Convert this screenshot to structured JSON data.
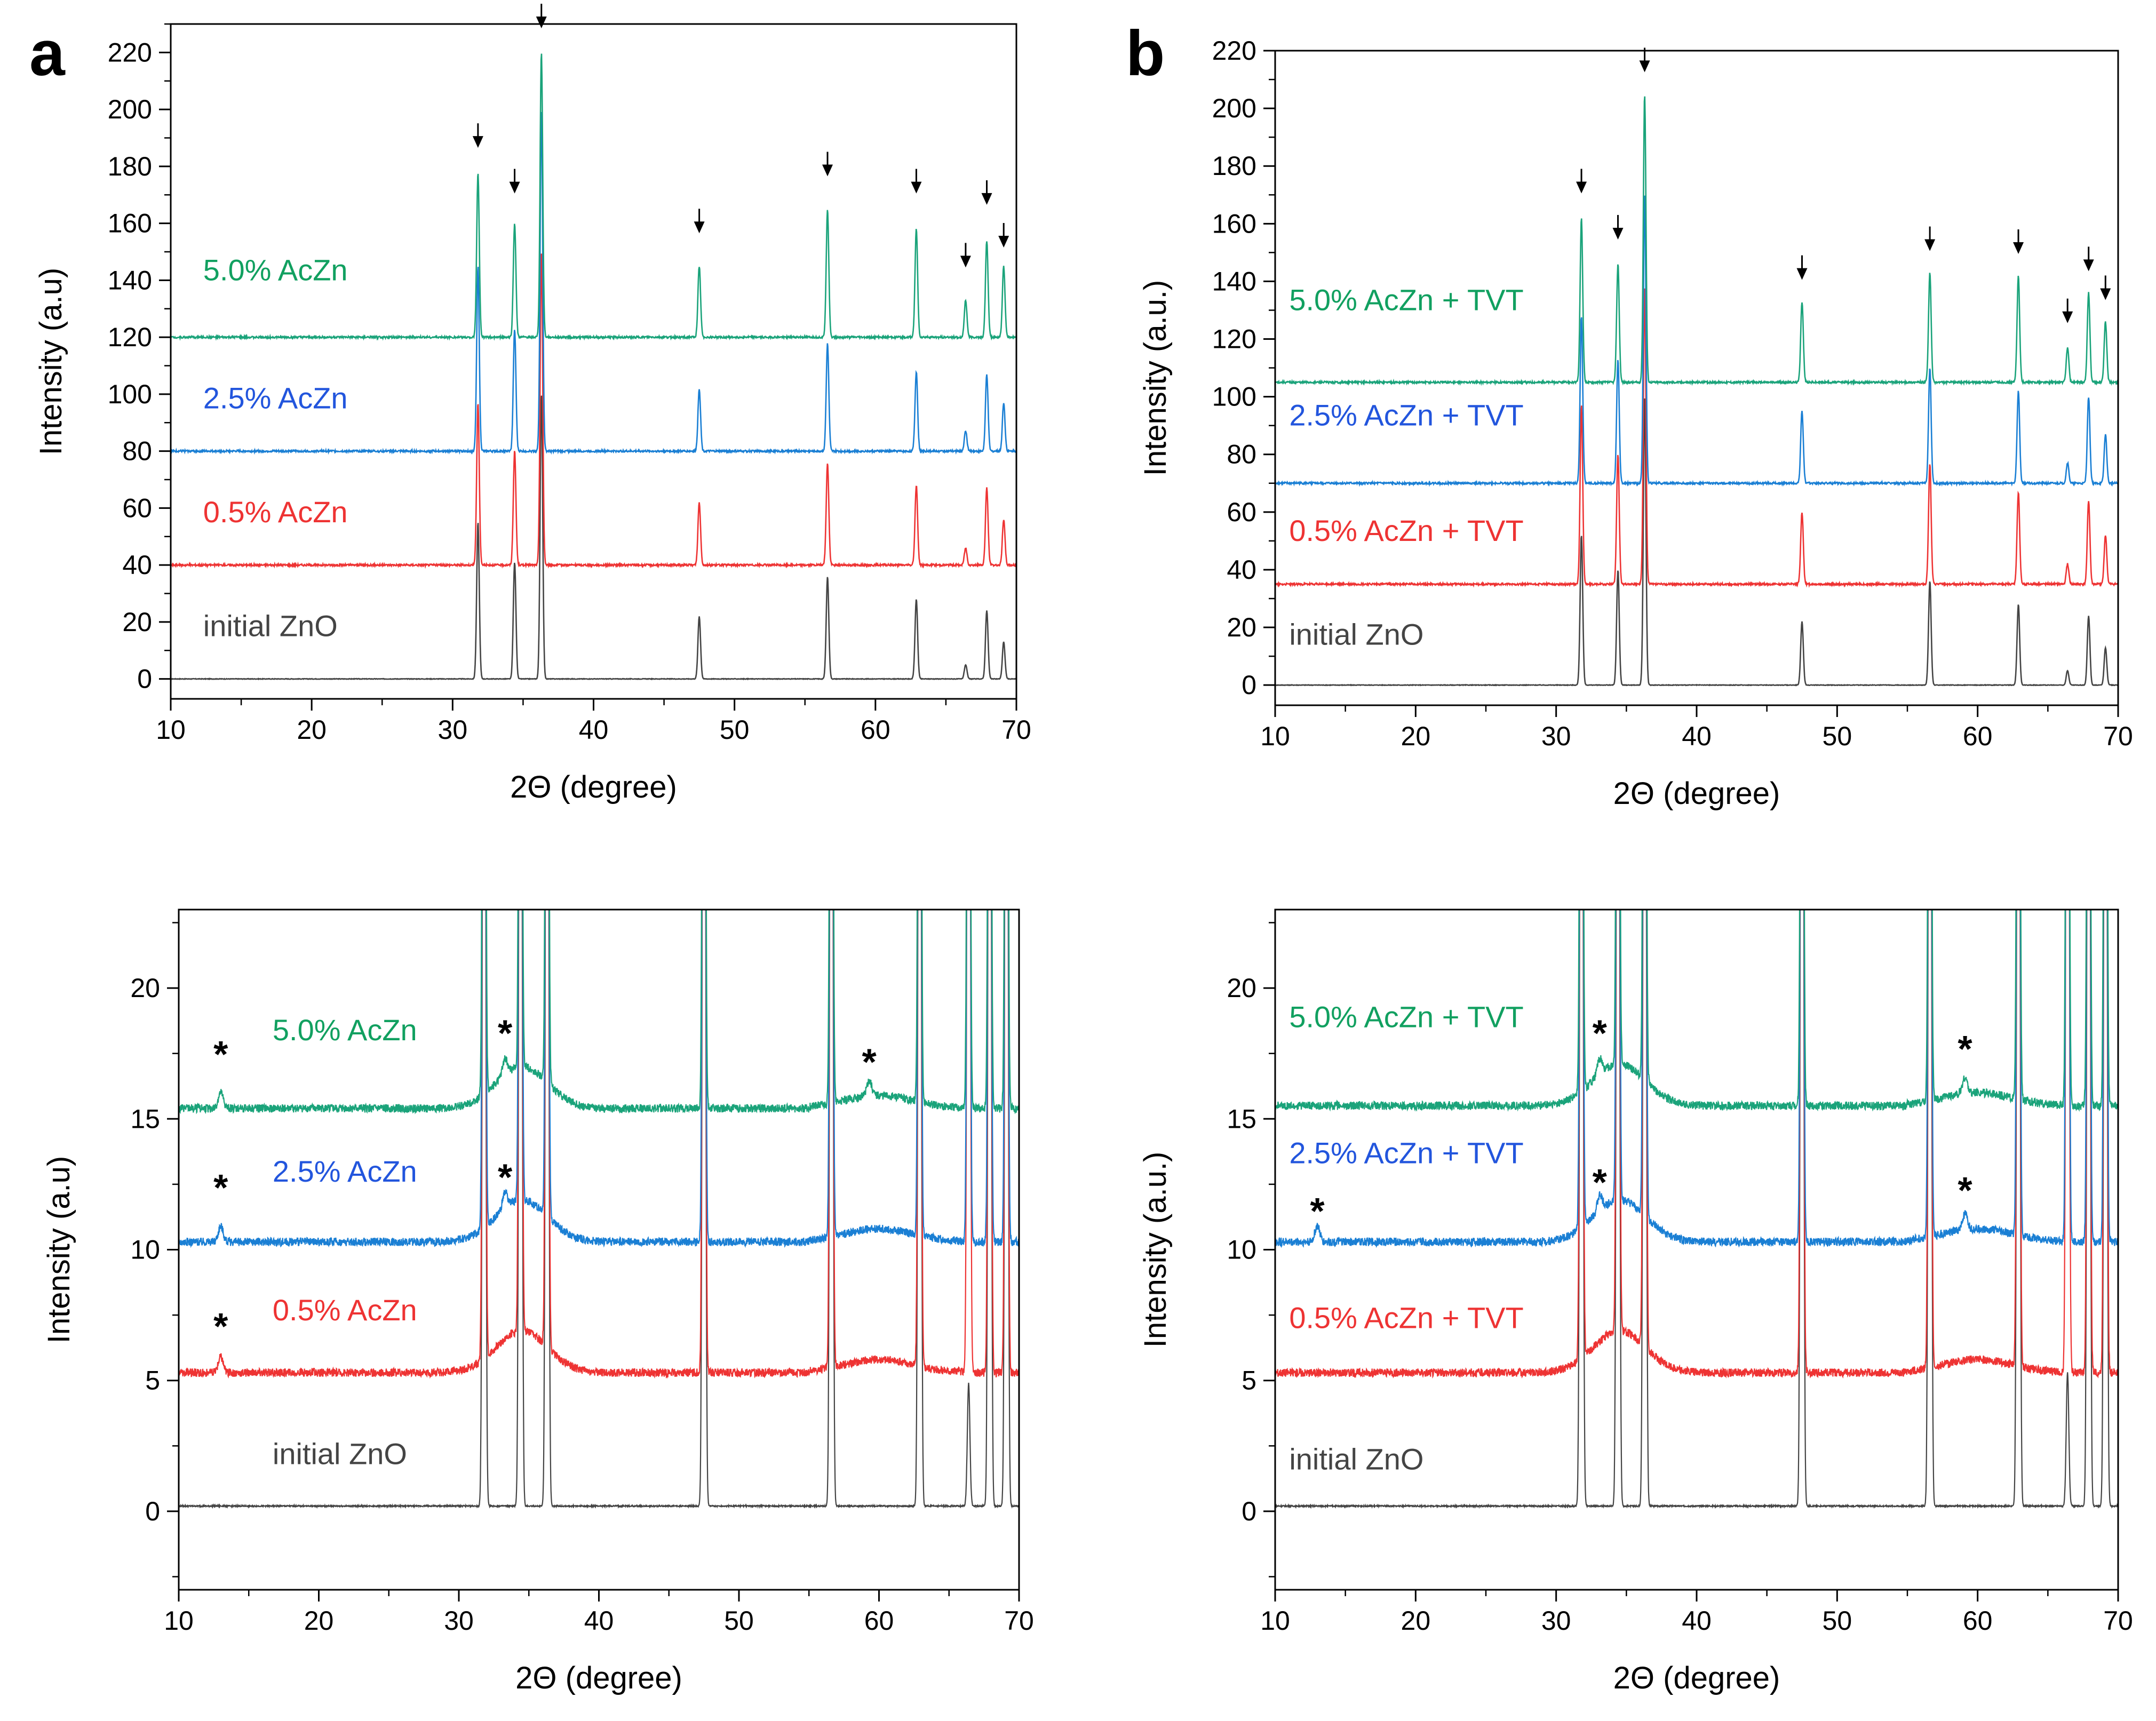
{
  "figure": {
    "panels": [
      {
        "letter": "a"
      },
      {
        "letter": "b"
      }
    ]
  },
  "colors": {
    "initial": "#444444",
    "p05": "#ee3333",
    "p25": "#2255dd",
    "p50": "#11a060",
    "p25_line": "#1a7fd4",
    "p50_line": "#1aa37a",
    "axis": "#000000"
  },
  "chart_data": [
    {
      "id": "a-top",
      "type": "line",
      "title": "",
      "xlabel": "2Θ (degree)",
      "ylabel": "Intensity (a.u)",
      "xlim": [
        10,
        70
      ],
      "ylim": [
        -7,
        230
      ],
      "xticks": [
        10,
        20,
        30,
        40,
        50,
        60,
        70
      ],
      "yticks": [
        0,
        20,
        40,
        60,
        80,
        100,
        120,
        140,
        160,
        180,
        200,
        220
      ],
      "peaks_deg": [
        31.8,
        34.4,
        36.3,
        47.5,
        56.6,
        62.9,
        66.4,
        67.9,
        69.1
      ],
      "series": [
        {
          "name": "initial ZnO",
          "offset": 0,
          "peak_tops": [
            55,
            41,
            100,
            22,
            36,
            28,
            5,
            24,
            13
          ],
          "label_pos": 1
        },
        {
          "name": "0.5% AcZn",
          "offset": 40,
          "peak_tops": [
            97,
            80,
            150,
            62,
            76,
            68,
            46,
            67,
            56
          ],
          "label_pos": 2
        },
        {
          "name": "2.5% AcZn",
          "offset": 80,
          "peak_tops": [
            145,
            123,
            200,
            102,
            118,
            108,
            87,
            107,
            97
          ],
          "label_pos": 3
        },
        {
          "name": "5.0% AcZn",
          "offset": 120,
          "peak_tops": [
            178,
            160,
            220,
            145,
            165,
            158,
            133,
            154,
            145
          ],
          "label_pos": 4
        }
      ],
      "label_y": [
        15,
        55,
        95,
        140
      ],
      "peak_arrow_y": [
        188,
        172,
        230,
        158,
        178,
        172,
        146,
        168,
        153
      ],
      "zoom_markers": []
    },
    {
      "id": "b-top",
      "type": "line",
      "title": "",
      "xlabel": "2Θ (degree)",
      "ylabel": "Intensity (a.u.)",
      "xlim": [
        10,
        70
      ],
      "ylim": [
        -7,
        220
      ],
      "xticks": [
        10,
        20,
        30,
        40,
        50,
        60,
        70
      ],
      "yticks": [
        0,
        20,
        40,
        60,
        80,
        100,
        120,
        140,
        160,
        180,
        200,
        220
      ],
      "peaks_deg": [
        31.8,
        34.4,
        36.3,
        47.5,
        56.6,
        62.9,
        66.4,
        67.9,
        69.1
      ],
      "series": [
        {
          "name": "initial ZnO",
          "offset": 0,
          "peak_tops": [
            52,
            40,
            100,
            22,
            36,
            28,
            5,
            24,
            13
          ],
          "label_pos": 1
        },
        {
          "name": "0.5% AcZn + TVT",
          "offset": 35,
          "peak_tops": [
            97,
            80,
            138,
            60,
            77,
            67,
            42,
            64,
            52
          ],
          "label_pos": 2
        },
        {
          "name": "2.5% AcZn + TVT",
          "offset": 70,
          "peak_tops": [
            128,
            113,
            170,
            95,
            110,
            102,
            77,
            100,
            87
          ],
          "label_pos": 3
        },
        {
          "name": "5.0% AcZn + TVT",
          "offset": 105,
          "peak_tops": [
            162,
            146,
            205,
            133,
            143,
            142,
            117,
            136,
            126
          ],
          "label_pos": 4
        }
      ],
      "label_y": [
        14,
        50,
        90,
        130
      ],
      "peak_arrow_y": [
        172,
        156,
        214,
        142,
        152,
        151,
        127,
        145,
        135
      ],
      "zoom_markers": []
    },
    {
      "id": "a-bottom",
      "type": "line",
      "title": "",
      "xlabel": "2Θ (degree)",
      "ylabel": "Intensity (a.u)",
      "xlim": [
        10,
        70
      ],
      "ylim": [
        -3,
        23
      ],
      "xticks": [
        10,
        20,
        30,
        40,
        50,
        60,
        70
      ],
      "yticks": [
        0,
        5,
        10,
        15,
        20
      ],
      "peaks_deg": [
        31.8,
        34.4,
        36.3,
        47.5,
        56.6,
        62.9,
        66.4,
        67.9,
        69.1
      ],
      "series": [
        {
          "name": "initial ZnO",
          "offset": 0.2,
          "peak_tops": [
            60,
            60,
            60,
            60,
            60,
            60,
            4.9,
            60,
            60
          ],
          "label_pos": 1
        },
        {
          "name": "0.5% AcZn",
          "offset": 5.3,
          "peak_tops": [
            60,
            60,
            60,
            60,
            60,
            60,
            60,
            60,
            60
          ],
          "label_pos": 2
        },
        {
          "name": "2.5% AcZn",
          "offset": 10.3,
          "peak_tops": [
            60,
            60,
            60,
            60,
            60,
            60,
            60,
            60,
            60
          ],
          "label_pos": 3
        },
        {
          "name": "5.0% AcZn",
          "offset": 15.4,
          "peak_tops": [
            60,
            60,
            60,
            60,
            60,
            60,
            60,
            60,
            60
          ],
          "label_pos": 4
        }
      ],
      "label_y": [
        1.8,
        7.3,
        12.6,
        18.0
      ],
      "peak_arrow_y": [],
      "zoom_markers": [
        {
          "label": "*",
          "x": 13,
          "y": 7.2
        },
        {
          "label": "*",
          "x": 13,
          "y": 12.5
        },
        {
          "label": "*",
          "x": 13,
          "y": 17.6
        },
        {
          "label": "*",
          "x": 33.3,
          "y": 12.9
        },
        {
          "label": "*",
          "x": 33.3,
          "y": 18.4
        },
        {
          "label": "*",
          "x": 59.3,
          "y": 17.3
        }
      ]
    },
    {
      "id": "b-bottom",
      "type": "line",
      "title": "",
      "xlabel": "2Θ (degree)",
      "ylabel": "Intensity (a.u.)",
      "xlim": [
        10,
        70
      ],
      "ylim": [
        -3,
        23
      ],
      "xticks": [
        10,
        20,
        30,
        40,
        50,
        60,
        70
      ],
      "yticks": [
        0,
        5,
        10,
        15,
        20
      ],
      "peaks_deg": [
        31.8,
        34.4,
        36.3,
        47.5,
        56.6,
        62.9,
        66.4,
        67.9,
        69.1
      ],
      "series": [
        {
          "name": "initial ZnO",
          "offset": 0.2,
          "peak_tops": [
            60,
            60,
            60,
            60,
            60,
            60,
            5.3,
            60,
            60
          ],
          "label_pos": 1
        },
        {
          "name": "0.5% AcZn + TVT",
          "offset": 5.3,
          "peak_tops": [
            60,
            60,
            60,
            60,
            60,
            60,
            60,
            60,
            60
          ],
          "label_pos": 2
        },
        {
          "name": "2.5% AcZn + TVT",
          "offset": 10.3,
          "peak_tops": [
            60,
            60,
            60,
            60,
            60,
            60,
            60,
            60,
            60
          ],
          "label_pos": 3
        },
        {
          "name": "5.0% AcZn + TVT",
          "offset": 15.5,
          "peak_tops": [
            60,
            60,
            60,
            60,
            60,
            60,
            60,
            60,
            60
          ],
          "label_pos": 4
        }
      ],
      "label_y": [
        1.6,
        7.0,
        13.3,
        18.5
      ],
      "peak_arrow_y": [],
      "zoom_markers": [
        {
          "label": "*",
          "x": 13,
          "y": 11.6
        },
        {
          "label": "*",
          "x": 33.1,
          "y": 12.7
        },
        {
          "label": "*",
          "x": 33.1,
          "y": 18.4
        },
        {
          "label": "*",
          "x": 59.1,
          "y": 12.4
        },
        {
          "label": "*",
          "x": 59.1,
          "y": 17.8
        }
      ]
    }
  ]
}
